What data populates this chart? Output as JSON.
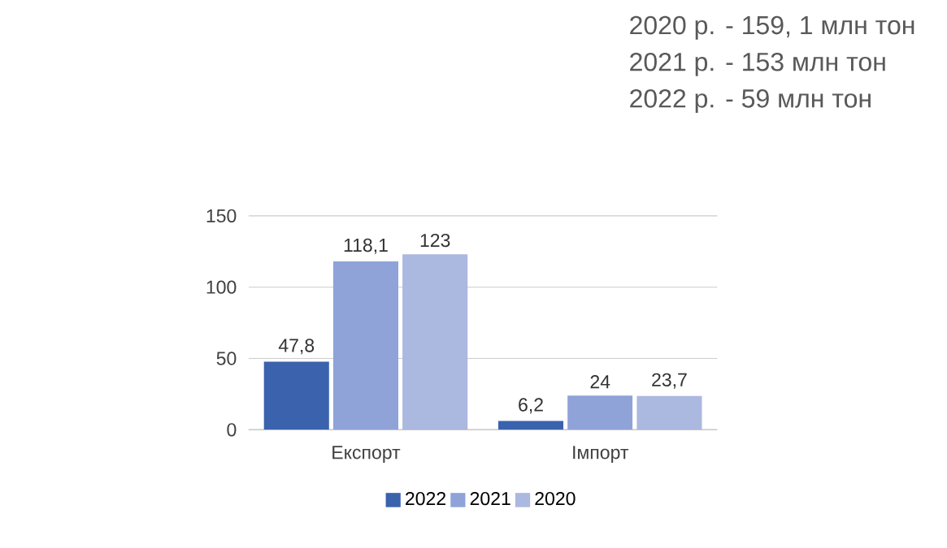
{
  "chart_data": {
    "type": "bar",
    "categories": [
      "Експорт",
      "Імпорт"
    ],
    "series": [
      {
        "name": "2022",
        "color": "#3a62ad",
        "values": [
          47.8,
          6.2
        ],
        "value_labels": [
          "47,8",
          "6,2"
        ]
      },
      {
        "name": "2021",
        "color": "#8fa3d9",
        "values": [
          118.1,
          24
        ],
        "value_labels": [
          "118,1",
          "24"
        ]
      },
      {
        "name": "2020",
        "color": "#abb8df",
        "values": [
          123,
          23.7
        ],
        "value_labels": [
          "123",
          "23,7"
        ]
      }
    ],
    "ylim": [
      0,
      150
    ],
    "yticks": [
      0,
      50,
      100,
      150
    ],
    "grid": "y",
    "legend": "bottom",
    "annotations": [
      "2020 р. - 159, 1 млн тон",
      "2021 р. - 153 млн тон",
      "2022 р. - 59 млн тон"
    ]
  }
}
